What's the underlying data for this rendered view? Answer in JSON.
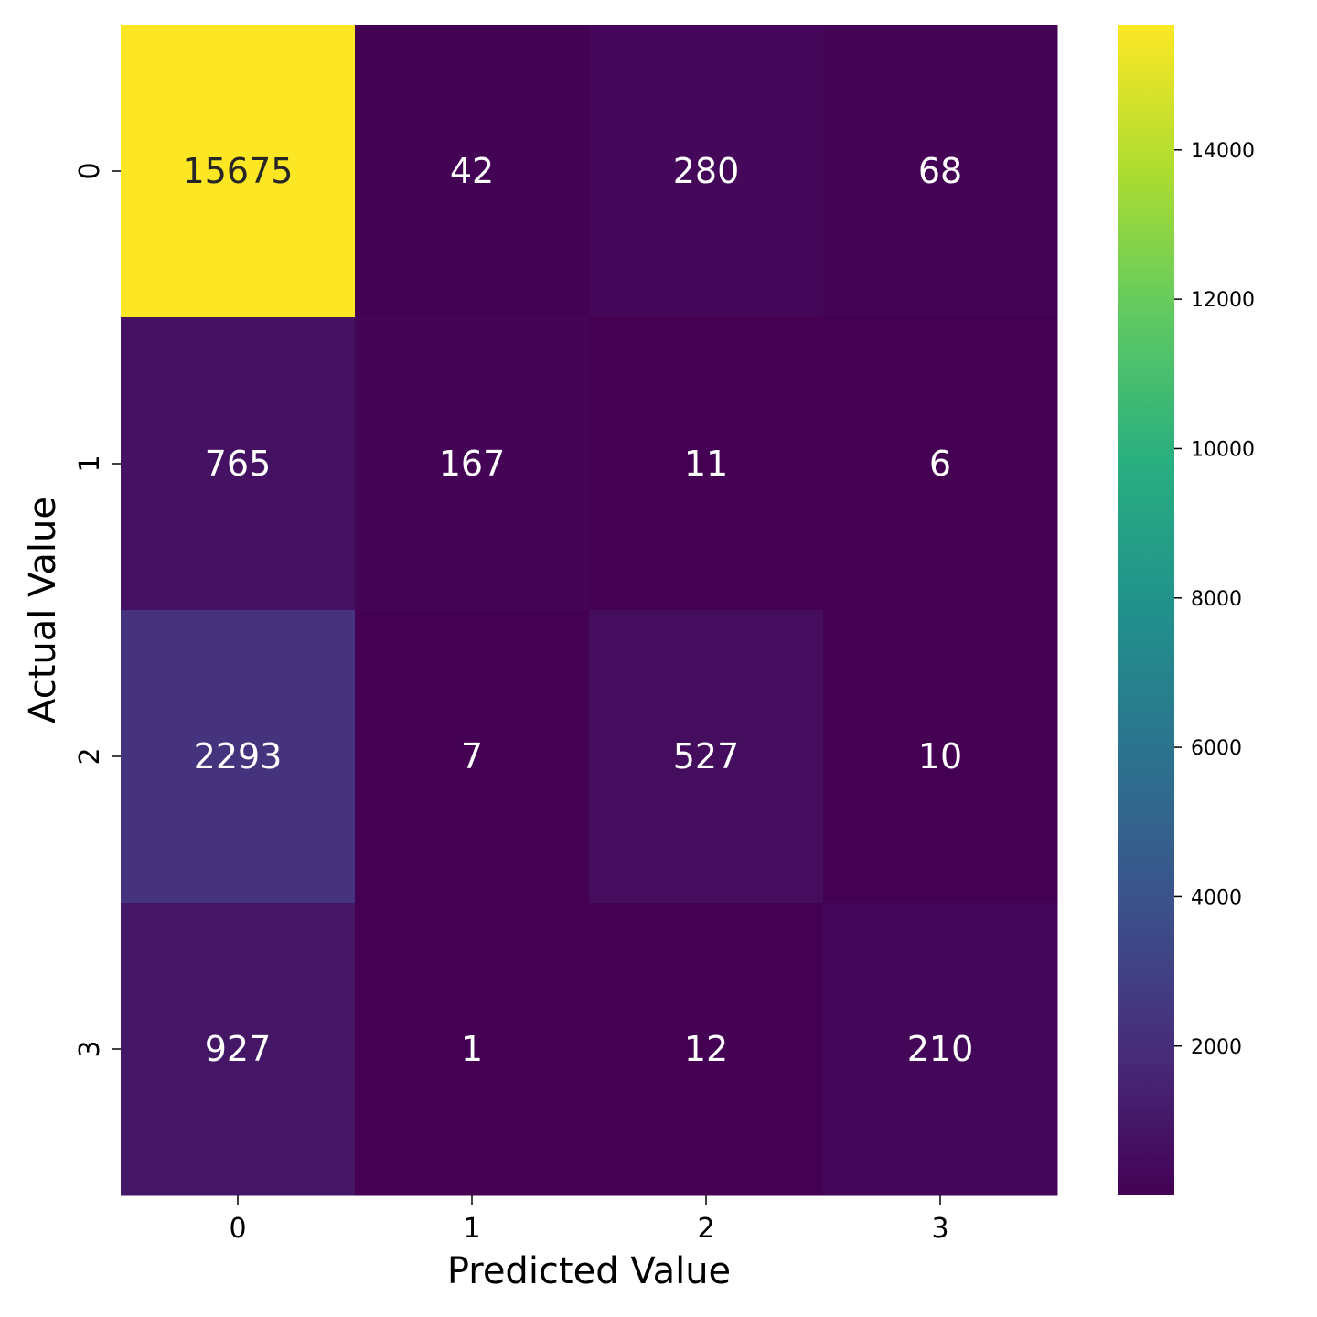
{
  "chart_data": {
    "type": "heatmap",
    "title": "",
    "xlabel": "Predicted Value",
    "ylabel": "Actual Value",
    "x_categories": [
      "0",
      "1",
      "2",
      "3"
    ],
    "y_categories": [
      "0",
      "1",
      "2",
      "3"
    ],
    "values": [
      [
        15675,
        42,
        280,
        68
      ],
      [
        765,
        167,
        11,
        6
      ],
      [
        2293,
        7,
        527,
        10
      ],
      [
        927,
        1,
        12,
        210
      ]
    ],
    "colormap": "viridis",
    "colorbar": {
      "min": 1,
      "max": 15675,
      "ticks": [
        "2000",
        "4000",
        "6000",
        "8000",
        "10000",
        "12000",
        "14000"
      ]
    },
    "grid": false
  }
}
